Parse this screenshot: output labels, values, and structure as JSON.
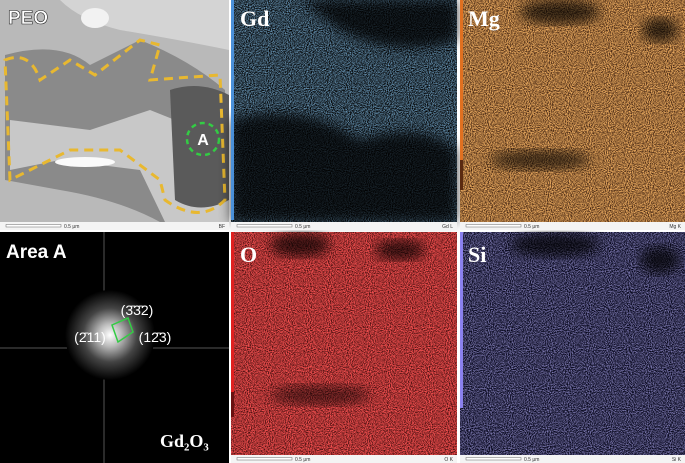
{
  "panels": [
    {
      "label": "PEO",
      "region": "A",
      "scale_bar": "0.5 μm",
      "signal": "BF"
    },
    {
      "label": "Gd",
      "scale_bar": "0.5 μm",
      "signal": "Gd L"
    },
    {
      "label": "Mg",
      "scale_bar": "0.5 μm",
      "signal": "Mg K"
    },
    {
      "label": "Area A",
      "spots": [
        "(3̄3̄2)",
        "(2̄11)",
        "(12̄3)"
      ],
      "phase": "Gd₂O₃"
    },
    {
      "label": "O",
      "scale_bar": "0.5 μm",
      "signal": "O K"
    },
    {
      "label": "Si",
      "scale_bar": "0.5 μm",
      "signal": "Si K"
    }
  ]
}
